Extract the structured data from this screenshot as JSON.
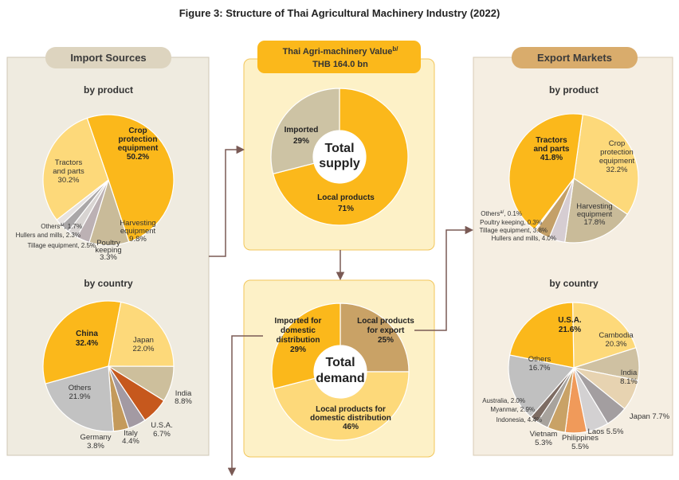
{
  "title": "Figure 3: Structure of Thai Agricultural Machinery Industry (2022)",
  "colors": {
    "left_panel": "#efebe0",
    "right_panel": "#f5eee2",
    "center_panel": "#fdf1c7",
    "pill": "#ddd4bf",
    "arrow": "#7a5a55"
  },
  "import_panel": {
    "header": "Import Sources"
  },
  "export_panel": {
    "header": "Export Markets"
  },
  "value_box": {
    "line1": "Thai Agri-machinery Value",
    "superscript": "b/",
    "line2": "THB 164.0 bn"
  },
  "supply_center": {
    "line1": "Total",
    "line2": "supply"
  },
  "demand_center": {
    "line1": "Total",
    "line2": "demand"
  },
  "chart_data": [
    {
      "id": "import_by_product",
      "type": "pie",
      "title": "by product",
      "slices": [
        {
          "label": "Crop protection equipment",
          "value": 50.2,
          "color": "#fbb81b",
          "lines": [
            "Crop",
            "protection",
            "equipment",
            "50.2%"
          ],
          "bold": true
        },
        {
          "label": "Harvesting equipment",
          "value": 9.8,
          "color": "#c9bb99",
          "lines": [
            "Harvesting",
            "equipment",
            "9.8%"
          ],
          "bold": false
        },
        {
          "label": "Poultry keeping",
          "value": 3.3,
          "color": "#bcb1b4",
          "lines": [
            "Poultry",
            "keeping",
            "3.3%"
          ],
          "bold": false
        },
        {
          "label": "Tillage equipment",
          "value": 2.5,
          "color": "#d8d4d2",
          "lines": [
            "Tillage equipment, 2.5%"
          ],
          "bold": false
        },
        {
          "label": "Hullers and mills",
          "value": 2.3,
          "color": "#aaa7a8",
          "lines": [
            "Hullers and mills, 2.3%"
          ],
          "bold": false
        },
        {
          "label": "Others",
          "value": 1.7,
          "color": "#e6e2e0",
          "lines": [
            "Others",
            "a/",
            ", 1.7%"
          ],
          "bold": false
        },
        {
          "label": "Tractors and parts",
          "value": 30.2,
          "color": "#fdd97a",
          "lines": [
            "Tractors",
            "and parts",
            "30.2%"
          ],
          "bold": false
        }
      ]
    },
    {
      "id": "import_by_country",
      "type": "pie",
      "title": "by country",
      "slices": [
        {
          "label": "Japan",
          "value": 22.0,
          "color": "#fdd97a",
          "lines": [
            "Japan",
            "22.0%"
          ],
          "bold": false
        },
        {
          "label": "India",
          "value": 8.8,
          "color": "#cdbf9c",
          "lines": [
            "India",
            "8.8%"
          ],
          "bold": false
        },
        {
          "label": "U.S.A.",
          "value": 6.7,
          "color": "#c6581d",
          "lines": [
            "U.S.A.",
            "6.7%"
          ],
          "bold": false
        },
        {
          "label": "Italy",
          "value": 4.4,
          "color": "#a39aa3",
          "lines": [
            "Italy",
            "4.4%"
          ],
          "bold": false
        },
        {
          "label": "Germany",
          "value": 3.8,
          "color": "#c49a5b",
          "lines": [
            "Germany",
            "3.8%"
          ],
          "bold": false
        },
        {
          "label": "Others",
          "value": 21.9,
          "color": "#c2c2c2",
          "lines": [
            "Others",
            "21.9%"
          ],
          "bold": false
        },
        {
          "label": "China",
          "value": 32.4,
          "color": "#fbb81b",
          "lines": [
            "China",
            "32.4%"
          ],
          "bold": true
        }
      ]
    },
    {
      "id": "total_supply",
      "type": "donut",
      "title": "Total supply",
      "slices": [
        {
          "label": "Local products",
          "value": 71,
          "color": "#fbb81b",
          "lines": [
            "Local products",
            "71%"
          ],
          "bold": true
        },
        {
          "label": "Imported",
          "value": 29,
          "color": "#cdc3a4",
          "lines": [
            "Imported",
            "29%"
          ],
          "bold": true
        }
      ]
    },
    {
      "id": "total_demand",
      "type": "donut",
      "title": "Total demand",
      "slices": [
        {
          "label": "Local products for export",
          "value": 25,
          "color": "#c9a266",
          "lines": [
            "Local products",
            "for export",
            "25%"
          ],
          "bold": true
        },
        {
          "label": "Local products for domestic distribution",
          "value": 46,
          "color": "#fdd97a",
          "lines": [
            "Local products for",
            "domestic distribution",
            "46%"
          ],
          "bold": true
        },
        {
          "label": "Imported for domestic distribution",
          "value": 29,
          "color": "#fbb81b",
          "lines": [
            "Imported for",
            "domestic",
            "distribution",
            "29%"
          ],
          "bold": true
        }
      ]
    },
    {
      "id": "export_by_product",
      "type": "pie",
      "title": "by product",
      "slices": [
        {
          "label": "Crop protection equipment",
          "value": 32.2,
          "color": "#fdd97a",
          "lines": [
            "Crop",
            "protection",
            "equipment",
            "32.2%"
          ],
          "bold": false
        },
        {
          "label": "Harvesting equipment",
          "value": 17.8,
          "color": "#c9bb99",
          "lines": [
            "Harvesting",
            "equipment",
            "17.8%"
          ],
          "bold": false
        },
        {
          "label": "Hullers and mills",
          "value": 4.0,
          "color": "#d6cdd2",
          "lines": [
            "Hullers and mills, 4.0%"
          ],
          "bold": false
        },
        {
          "label": "Tillage equipment",
          "value": 3.8,
          "color": "#c4a068",
          "lines": [
            "Tillage equipment, 3.8%"
          ],
          "bold": false
        },
        {
          "label": "Poultry keeping",
          "value": 0.3,
          "color": "#a78e7c",
          "lines": [
            "Poultry keeping,  0.3%"
          ],
          "bold": false
        },
        {
          "label": "Others",
          "value": 0.1,
          "color": "#8c7f80",
          "lines": [
            "Others",
            "a/",
            ",  0.1%"
          ],
          "bold": false
        },
        {
          "label": "Tractors and parts",
          "value": 41.8,
          "color": "#fbb81b",
          "lines": [
            "Tractors",
            "and parts",
            "41.8%"
          ],
          "bold": true
        }
      ]
    },
    {
      "id": "export_by_country",
      "type": "pie",
      "title": "by country",
      "slices": [
        {
          "label": "Cambodia",
          "value": 20.3,
          "color": "#fdd97a",
          "lines": [
            "Cambodia",
            "20.3%"
          ],
          "bold": false
        },
        {
          "label": "India",
          "value": 8.1,
          "color": "#cfc1a2",
          "lines": [
            "India",
            "8.1%"
          ],
          "bold": false
        },
        {
          "label": "Japan",
          "value": 7.7,
          "color": "#e7d3b1",
          "lines": [
            "Japan 7.7%"
          ],
          "bold": false
        },
        {
          "label": "Laos",
          "value": 5.5,
          "color": "#a39ea0",
          "lines": [
            "Laos 5.5%"
          ],
          "bold": false
        },
        {
          "label": "Philippines",
          "value": 5.5,
          "color": "#d3d1d2",
          "lines": [
            "Philippines",
            "5.5%"
          ],
          "bold": false
        },
        {
          "label": "Vietnam",
          "value": 5.3,
          "color": "#f09a5a",
          "lines": [
            "Vietnam",
            "5.3%"
          ],
          "bold": false
        },
        {
          "label": "Indonesia",
          "value": 4.4,
          "color": "#c9a266",
          "lines": [
            "Indonesia, 4.4%"
          ],
          "bold": false
        },
        {
          "label": "Myanmar",
          "value": 2.9,
          "color": "#a8a39d",
          "lines": [
            "Myanmar, 2.9%"
          ],
          "bold": false
        },
        {
          "label": "Australia",
          "value": 2.0,
          "color": "#7d6c63",
          "lines": [
            "Australia, 2.0%"
          ],
          "bold": false
        },
        {
          "label": "Others",
          "value": 16.7,
          "color": "#c0c0c0",
          "lines": [
            "Others",
            "16.7%"
          ],
          "bold": false
        },
        {
          "label": "U.S.A.",
          "value": 21.6,
          "color": "#fbb81b",
          "lines": [
            "U.S.A.",
            "21.6%"
          ],
          "bold": true
        }
      ]
    }
  ]
}
